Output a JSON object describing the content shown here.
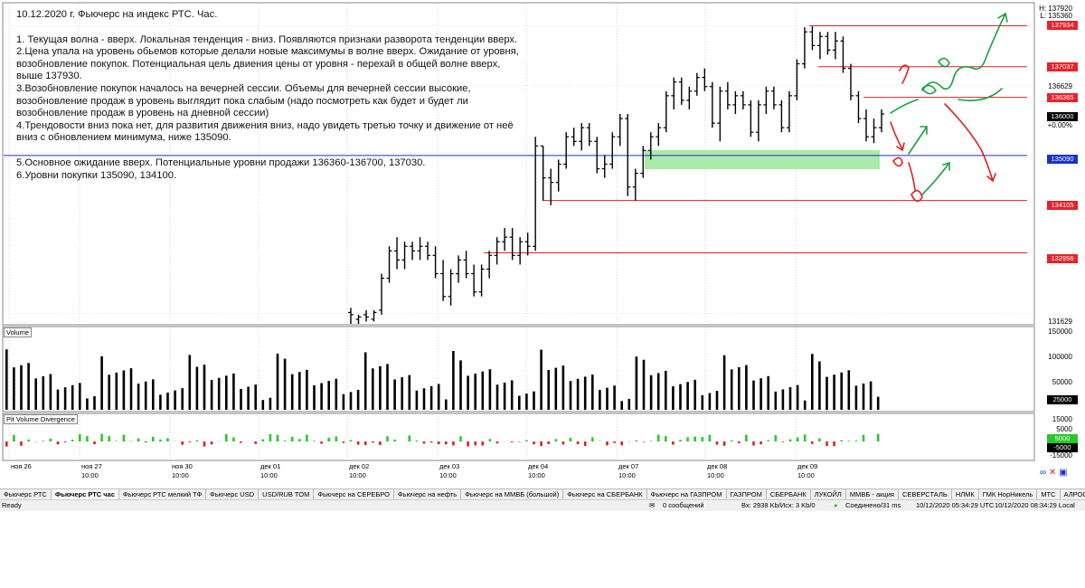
{
  "notes": {
    "title": "10.12.2020 г. Фьючерс на индекс РТС. Час.",
    "lines": [
      "1. Текущая волна - вверх. Локальная тенденция - вниз. Появляются признаки разворота тенденции вверх.",
      "2.Цена упала на уровень обьемов которые делали новые максимумы в волне вверх. Ожидание от уровня,\nвозобновление покупок. Потенциальная цель двиения цены от уровня - перехай в общей волне вверх,\nвыше 137930.",
      "3.Возобновление покупок началось на вечерней сессии. Объемы для вечерней сессии высокие,\nвозобновление продаж в уровень выглядит пока слабым (надо посмотреть как будет и будет ли\nвозобновление продаж в уровень на дневной сессии)",
      "4.Трендовости вниз пока нет, для развития движения вниз, надо увидеть третью точку и движение от неё\nвниз с обновлением минимума, ниже 135090.",
      "",
      "5.Основное ожидание вверх. Потенциальные уровни продажи 136360-136700, 137030.",
      "6.Уровни покупки 135090, 134100."
    ]
  },
  "price_axis": {
    "hl_top": "H: 137920",
    "hl_bottom": "L: 135360",
    "label_136629": "136629",
    "label_131629": "131629",
    "current": "136000",
    "change": "+0.00%",
    "levels": [
      {
        "value": 137934,
        "text": "137934",
        "kind": "red"
      },
      {
        "value": 137037,
        "text": "137037",
        "kind": "red"
      },
      {
        "value": 136365,
        "text": "136365",
        "kind": "red"
      },
      {
        "value": 135090,
        "text": "135090",
        "kind": "blue"
      },
      {
        "value": 134105,
        "text": "134105",
        "kind": "red"
      },
      {
        "value": 132956,
        "text": "132956",
        "kind": "red"
      }
    ]
  },
  "volume_panel": {
    "title": "Volume",
    "ticks": [
      "150000",
      "100000",
      "50000"
    ],
    "current": "25000"
  },
  "pvd_panel": {
    "title": "Pit Volume Divergence",
    "ticks": [
      "15000",
      "5000",
      "-5000",
      "-15000"
    ],
    "current_pos": "5000",
    "current_neg": "-5000"
  },
  "date_axis": [
    {
      "text": "ноя 26",
      "x": 10
    },
    {
      "text": "ноя 27",
      "x": 88
    },
    {
      "text": "ноя 30",
      "x": 188
    },
    {
      "text": "дек 01",
      "x": 286
    },
    {
      "text": "дек 02",
      "x": 384
    },
    {
      "text": "дек 03",
      "x": 484
    },
    {
      "text": "дек 04",
      "x": 582
    },
    {
      "text": "дек 07",
      "x": 682
    },
    {
      "text": "дек 08",
      "x": 780
    },
    {
      "text": "дек 09",
      "x": 880
    }
  ],
  "time_axis": [
    "10:00",
    "10:00",
    "10:00",
    "10:00",
    "10:00",
    "10:00",
    "10:00",
    "10:00",
    "10:00"
  ],
  "tabs": [
    "Фьючерс РТС",
    "Фьючерс РТС час",
    "Фьючерс РТС мелкий ТФ",
    "Фьючерс USD",
    "USD/RUB TOM",
    "Фьючерс на СЕРЕБРО",
    "Фьючерс на нефть",
    "Фьючерс на ММВБ (большой)",
    "Фьючерс на СБЕРБАНК",
    "Фьючерс на ГАЗПРОМ",
    "ГАЗПРОМ",
    "СБЕРБАНК",
    "ЛУКОЙЛ",
    "ММВБ - акция",
    "СЕВЕРСТАЛЬ",
    "НЛМК",
    "ГМК НорНикель",
    "МТС",
    "АЛРОСА"
  ],
  "active_tab": "Фьючерс РТС час",
  "status": {
    "ready": "Ready",
    "messages": "0 сообщений",
    "traffic": "Вх: 2938 Kb/Исх: 3 Kb/0",
    "connection": "Соединено/31 ms",
    "time_utc": "10/12/2020 05:34:29 UTC",
    "time_local": "10/12/2020 08:34:29 Local"
  },
  "chart_data": {
    "type": "bar",
    "bar_style": "ohlc",
    "price_range": [
      131400,
      138300
    ],
    "horizontal_levels": [
      137934,
      137037,
      136365,
      135090,
      134105,
      132956
    ],
    "ohlc": [
      [
        131650,
        131750,
        131400,
        131600
      ],
      [
        131500,
        131600,
        131400,
        131550
      ],
      [
        131600,
        131700,
        131450,
        131550
      ],
      [
        131500,
        131700,
        131450,
        131650
      ],
      [
        131700,
        132500,
        131600,
        132400
      ],
      [
        132400,
        133100,
        132300,
        133000
      ],
      [
        133000,
        133300,
        132600,
        132800
      ],
      [
        132800,
        133200,
        132600,
        133100
      ],
      [
        133100,
        133200,
        132800,
        133000
      ],
      [
        133000,
        133300,
        132800,
        133100
      ],
      [
        133100,
        133200,
        132800,
        132900
      ],
      [
        132900,
        133100,
        132400,
        132500
      ],
      [
        132500,
        132800,
        131900,
        132000
      ],
      [
        132000,
        132600,
        131800,
        132500
      ],
      [
        132500,
        132900,
        132300,
        132800
      ],
      [
        132800,
        133000,
        132400,
        132500
      ],
      [
        132500,
        132700,
        132000,
        132100
      ],
      [
        132100,
        132700,
        132000,
        132600
      ],
      [
        132600,
        133000,
        132400,
        132900
      ],
      [
        132900,
        133300,
        132700,
        133200
      ],
      [
        133200,
        133500,
        133000,
        133300
      ],
      [
        133300,
        133500,
        132800,
        132900
      ],
      [
        132900,
        133300,
        132700,
        133200
      ],
      [
        133200,
        133400,
        132900,
        133100
      ],
      [
        133100,
        135500,
        133000,
        135300
      ],
      [
        135300,
        135300,
        134100,
        134600
      ],
      [
        134600,
        134800,
        134000,
        134500
      ],
      [
        134500,
        135000,
        134300,
        134900
      ],
      [
        134900,
        135600,
        134800,
        135500
      ],
      [
        135500,
        135700,
        135300,
        135400
      ],
      [
        135400,
        135800,
        135200,
        135700
      ],
      [
        135700,
        135800,
        135300,
        135400
      ],
      [
        135400,
        135500,
        134700,
        134800
      ],
      [
        134800,
        135100,
        134600,
        134900
      ],
      [
        134900,
        135600,
        134800,
        135500
      ],
      [
        135500,
        136000,
        135300,
        135900
      ],
      [
        135900,
        136000,
        134200,
        134400
      ],
      [
        134400,
        134800,
        134100,
        134700
      ],
      [
        134700,
        135300,
        134600,
        135200
      ],
      [
        135200,
        135600,
        135000,
        135500
      ],
      [
        135500,
        135800,
        135300,
        135700
      ],
      [
        135700,
        136500,
        135600,
        136400
      ],
      [
        136400,
        136800,
        136100,
        136700
      ],
      [
        136700,
        136800,
        136200,
        136300
      ],
      [
        136300,
        136600,
        136100,
        136500
      ],
      [
        136500,
        136900,
        136400,
        136800
      ],
      [
        136800,
        137000,
        136500,
        136600
      ],
      [
        136600,
        136700,
        135700,
        135800
      ],
      [
        135800,
        136600,
        135400,
        136500
      ],
      [
        136500,
        136700,
        136100,
        136200
      ],
      [
        136200,
        136500,
        136000,
        136400
      ],
      [
        136400,
        136500,
        136100,
        136200
      ],
      [
        136200,
        136300,
        135500,
        135600
      ],
      [
        135600,
        136300,
        135400,
        136200
      ],
      [
        136200,
        136600,
        136000,
        136500
      ],
      [
        136500,
        136600,
        136100,
        136200
      ],
      [
        136200,
        136300,
        135600,
        135700
      ],
      [
        135700,
        136500,
        135600,
        136400
      ],
      [
        136400,
        137200,
        136300,
        137100
      ],
      [
        137100,
        137900,
        137000,
        137800
      ],
      [
        137800,
        137920,
        137400,
        137500
      ],
      [
        137500,
        137800,
        137200,
        137700
      ],
      [
        137700,
        137800,
        137300,
        137400
      ],
      [
        137400,
        137800,
        137200,
        137600
      ],
      [
        137600,
        137700,
        136900,
        137000
      ],
      [
        137000,
        137100,
        136300,
        136400
      ],
      [
        136400,
        136500,
        135800,
        135900
      ],
      [
        135900,
        136100,
        135400,
        135500
      ],
      [
        135500,
        135900,
        135360,
        135700
      ],
      [
        135700,
        136100,
        135600,
        136000
      ]
    ]
  }
}
